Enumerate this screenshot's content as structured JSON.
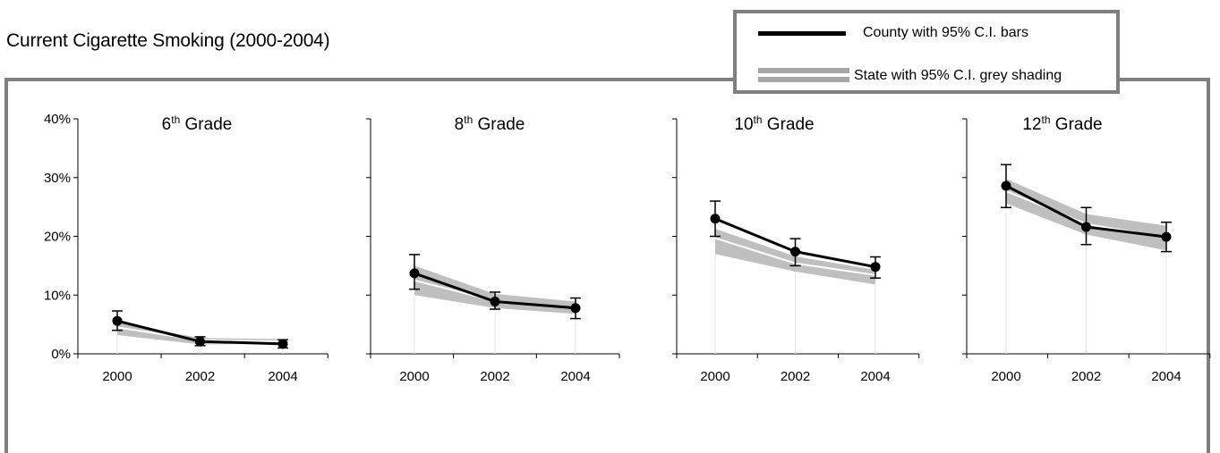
{
  "title": "Current Cigarette Smoking (2000-2004)",
  "legend": {
    "county_label": "County with 95% C.I. bars",
    "state_label": "State with 95% C.I. grey shading"
  },
  "colors": {
    "county_line": "#000000",
    "state_band": "#bfbfbf",
    "state_line": "#ffffff",
    "frame": "#7f7f7f"
  },
  "chart_data": [
    {
      "type": "line",
      "panel_title": "6",
      "panel_title_sup": "th",
      "panel_title_suffix": " Grade",
      "x": [
        "2000",
        "2002",
        "2004"
      ],
      "ylim": [
        0,
        40
      ],
      "yticks": [
        "0%",
        "10%",
        "20%",
        "30%",
        "40%"
      ],
      "series": [
        {
          "name": "County",
          "values": [
            5.6,
            2.1,
            1.7
          ],
          "ci_low": [
            4.0,
            1.4,
            1.0
          ],
          "ci_high": [
            7.3,
            2.9,
            2.4
          ]
        },
        {
          "name": "State",
          "values": [
            4.5,
            2.3,
            2.1
          ],
          "ci_low": [
            3.2,
            1.6,
            1.7
          ],
          "ci_high": [
            5.3,
            2.7,
            2.5
          ]
        }
      ]
    },
    {
      "type": "line",
      "panel_title": "8",
      "panel_title_sup": "th",
      "panel_title_suffix": " Grade",
      "x": [
        "2000",
        "2002",
        "2004"
      ],
      "ylim": [
        0,
        40
      ],
      "yticks": [
        "0%",
        "10%",
        "20%",
        "30%",
        "40%"
      ],
      "series": [
        {
          "name": "County",
          "values": [
            13.7,
            8.9,
            7.8
          ],
          "ci_low": [
            11.0,
            7.6,
            6.0
          ],
          "ci_high": [
            16.9,
            10.5,
            9.5
          ]
        },
        {
          "name": "State",
          "values": [
            12.5,
            9.0,
            7.8
          ],
          "ci_low": [
            10.0,
            7.8,
            6.8
          ],
          "ci_high": [
            15.0,
            10.2,
            8.9
          ]
        }
      ]
    },
    {
      "type": "line",
      "panel_title": "10",
      "panel_title_sup": "th",
      "panel_title_suffix": " Grade",
      "x": [
        "2000",
        "2002",
        "2004"
      ],
      "ylim": [
        0,
        40
      ],
      "yticks": [
        "0%",
        "10%",
        "20%",
        "30%",
        "40%"
      ],
      "series": [
        {
          "name": "County",
          "values": [
            23.0,
            17.4,
            14.8
          ],
          "ci_low": [
            20.0,
            15.0,
            12.9
          ],
          "ci_high": [
            26.0,
            19.6,
            16.5
          ]
        },
        {
          "name": "State",
          "values": [
            19.7,
            15.4,
            13.4
          ],
          "ci_low": [
            17.0,
            14.0,
            11.8
          ],
          "ci_high": [
            21.3,
            16.6,
            14.3
          ]
        }
      ]
    },
    {
      "type": "line",
      "panel_title": "12",
      "panel_title_sup": "th",
      "panel_title_suffix": " Grade",
      "x": [
        "2000",
        "2002",
        "2004"
      ],
      "ylim": [
        0,
        40
      ],
      "yticks": [
        "0%",
        "10%",
        "20%",
        "30%",
        "40%"
      ],
      "series": [
        {
          "name": "County",
          "values": [
            28.6,
            21.6,
            19.9
          ],
          "ci_low": [
            24.9,
            18.6,
            17.4
          ],
          "ci_high": [
            32.2,
            24.9,
            22.4
          ]
        },
        {
          "name": "State",
          "values": [
            27.7,
            22.1,
            19.8
          ],
          "ci_low": [
            25.6,
            20.3,
            17.6
          ],
          "ci_high": [
            29.8,
            23.8,
            21.8
          ]
        }
      ]
    }
  ]
}
